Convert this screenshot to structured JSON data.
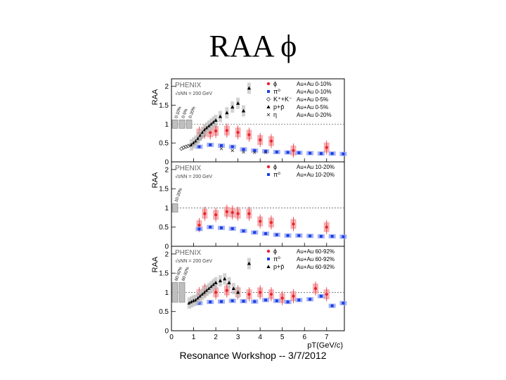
{
  "slide": {
    "title": "RAA ϕ",
    "footer": "Resonance Workshop -- 3/7/2012"
  },
  "colors": {
    "phi": "#e8242b",
    "pi": "#1a3fe6",
    "gray_band": "#bfbfbf",
    "red_band": "#f5a9ac",
    "blue_band": "#9aa8f5"
  },
  "chart_data": [
    {
      "type": "scatter",
      "panel": "top",
      "experiment": "PHENIX",
      "energy": "√sNN = 200 GeV",
      "ylabel": "RAA",
      "yticks": [
        "0",
        "0.5",
        "1",
        "1.5",
        "2"
      ],
      "ylim": [
        0,
        2.2
      ],
      "xlim": [
        0,
        7.8
      ],
      "ref_line": 1,
      "norm_labels": [
        "0-10%",
        "0-5%",
        "0-20%"
      ],
      "legend": [
        {
          "symbol": "phi",
          "label": "ϕ",
          "system": "Au+Au 0-10%"
        },
        {
          "symbol": "pi",
          "label": "π⁰",
          "system": "Au+Au 0-10%"
        },
        {
          "symbol": "kaon",
          "label": "K⁺+K⁻",
          "system": "Au+Au 0-5%"
        },
        {
          "symbol": "proton",
          "label": "p+p̄",
          "system": "Au+Au 0-5%"
        },
        {
          "symbol": "eta",
          "label": "η",
          "system": "Au+Au 0-20%"
        }
      ],
      "series": [
        {
          "name": "ϕ",
          "style": "phi",
          "x": [
            1.25,
            1.5,
            1.75,
            2.0,
            2.5,
            3.0,
            3.5,
            4.0,
            4.5,
            5.5,
            7.0
          ],
          "y": [
            0.75,
            0.8,
            0.78,
            0.82,
            0.83,
            0.78,
            0.72,
            0.58,
            0.55,
            0.3,
            0.38
          ]
        },
        {
          "name": "π⁰",
          "style": "pi",
          "x": [
            1.25,
            1.75,
            2.25,
            2.75,
            3.25,
            3.75,
            4.25,
            4.75,
            5.25,
            5.75,
            6.25,
            6.75,
            7.25,
            7.75
          ],
          "y": [
            0.4,
            0.45,
            0.43,
            0.4,
            0.33,
            0.3,
            0.28,
            0.26,
            0.25,
            0.24,
            0.23,
            0.22,
            0.22,
            0.21
          ]
        },
        {
          "name": "K⁺+K⁻",
          "style": "kaon",
          "x": [
            0.45,
            0.55,
            0.65,
            0.75,
            0.85,
            0.95,
            1.05,
            1.15,
            1.25,
            1.35,
            1.45
          ],
          "y": [
            0.35,
            0.38,
            0.4,
            0.42,
            0.44,
            0.46,
            0.5,
            0.55,
            0.6,
            0.65,
            0.72
          ]
        },
        {
          "name": "p+p̄",
          "style": "proton",
          "x": [
            0.9,
            1.0,
            1.1,
            1.2,
            1.3,
            1.4,
            1.5,
            1.6,
            1.7,
            1.8,
            1.9,
            2.0,
            2.2,
            2.5,
            2.75,
            3.0,
            3.25,
            3.5
          ],
          "y": [
            0.45,
            0.5,
            0.55,
            0.62,
            0.7,
            0.78,
            0.85,
            0.9,
            0.95,
            1.0,
            1.05,
            1.1,
            1.2,
            1.3,
            1.45,
            1.55,
            1.35,
            1.95
          ]
        },
        {
          "name": "η",
          "style": "eta",
          "x": [
            2.25,
            2.75,
            3.25,
            3.75,
            4.25
          ],
          "y": [
            0.35,
            0.3,
            0.26,
            0.25,
            0.25
          ]
        }
      ]
    },
    {
      "type": "scatter",
      "panel": "middle",
      "experiment": "PHENIX",
      "energy": "√sNN = 200 GeV",
      "ylabel": "RAA",
      "yticks": [
        "0",
        "0.5",
        "1",
        "1.5",
        "2"
      ],
      "ylim": [
        0,
        2.2
      ],
      "xlim": [
        0,
        7.8
      ],
      "ref_line": 1,
      "norm_labels": [
        "10-20%"
      ],
      "legend": [
        {
          "symbol": "phi",
          "label": "ϕ",
          "system": "Au+Au 10-20%"
        },
        {
          "symbol": "pi",
          "label": "π⁰",
          "system": "Au+Au 10-20%"
        }
      ],
      "series": [
        {
          "name": "ϕ",
          "style": "phi",
          "x": [
            1.25,
            1.5,
            2.0,
            2.5,
            2.75,
            3.0,
            3.5,
            4.0,
            4.5,
            5.5,
            7.0
          ],
          "y": [
            0.55,
            0.85,
            0.82,
            0.9,
            0.88,
            0.85,
            0.85,
            0.65,
            0.62,
            0.58,
            0.5
          ]
        },
        {
          "name": "π⁰",
          "style": "pi",
          "x": [
            1.25,
            1.75,
            2.25,
            2.75,
            3.25,
            3.75,
            4.25,
            4.75,
            5.25,
            5.75,
            6.25,
            6.75,
            7.25,
            7.75
          ],
          "y": [
            0.45,
            0.5,
            0.48,
            0.46,
            0.4,
            0.36,
            0.33,
            0.3,
            0.28,
            0.28,
            0.27,
            0.26,
            0.26,
            0.25
          ]
        }
      ]
    },
    {
      "type": "scatter",
      "panel": "bottom",
      "experiment": "PHENIX",
      "energy": "√sNN = 200 GeV",
      "ylabel": "RAA",
      "yticks": [
        "0",
        "0.5",
        "1",
        "1.5",
        "2"
      ],
      "ylim": [
        0,
        2.2
      ],
      "xlim": [
        0,
        7.8
      ],
      "ref_line": 1,
      "xticks": [
        "0",
        "1",
        "2",
        "3",
        "4",
        "5",
        "6",
        "7"
      ],
      "xlabel": "pT(GeV/c)",
      "norm_labels": [
        "60-92%",
        "60-92%"
      ],
      "legend": [
        {
          "symbol": "phi",
          "label": "ϕ",
          "system": "Au+Au 60-92%"
        },
        {
          "symbol": "pi",
          "label": "π⁰",
          "system": "Au+Au 60-92%"
        },
        {
          "symbol": "proton",
          "label": "p+p̄",
          "system": "Au+Au 60-92%"
        }
      ],
      "series": [
        {
          "name": "ϕ",
          "style": "phi",
          "x": [
            1.25,
            1.5,
            2.0,
            2.5,
            3.0,
            3.5,
            4.0,
            4.5,
            5.0,
            5.5,
            6.5,
            7.0
          ],
          "y": [
            0.95,
            1.05,
            1.0,
            1.05,
            1.0,
            0.95,
            1.0,
            0.95,
            0.85,
            0.9,
            1.1,
            0.95
          ]
        },
        {
          "name": "π⁰",
          "style": "pi",
          "x": [
            1.25,
            1.75,
            2.25,
            2.75,
            3.25,
            3.75,
            4.25,
            4.75,
            5.25,
            5.75,
            6.25,
            6.75,
            7.25,
            7.75
          ],
          "y": [
            0.72,
            0.75,
            0.76,
            0.78,
            0.77,
            0.76,
            0.8,
            0.78,
            0.75,
            0.8,
            0.82,
            0.9,
            0.65,
            0.72
          ]
        },
        {
          "name": "p+p̄",
          "style": "proton",
          "x": [
            0.8,
            0.9,
            1.0,
            1.1,
            1.2,
            1.3,
            1.4,
            1.5,
            1.6,
            1.7,
            1.8,
            1.9,
            2.0,
            2.2,
            2.4,
            2.6,
            2.8,
            3.0,
            3.5
          ],
          "y": [
            0.72,
            0.75,
            0.78,
            0.8,
            0.85,
            0.9,
            0.95,
            1.0,
            1.05,
            1.1,
            1.15,
            1.2,
            1.25,
            1.3,
            1.35,
            1.25,
            1.1,
            1.0,
            1.75
          ]
        }
      ]
    }
  ]
}
